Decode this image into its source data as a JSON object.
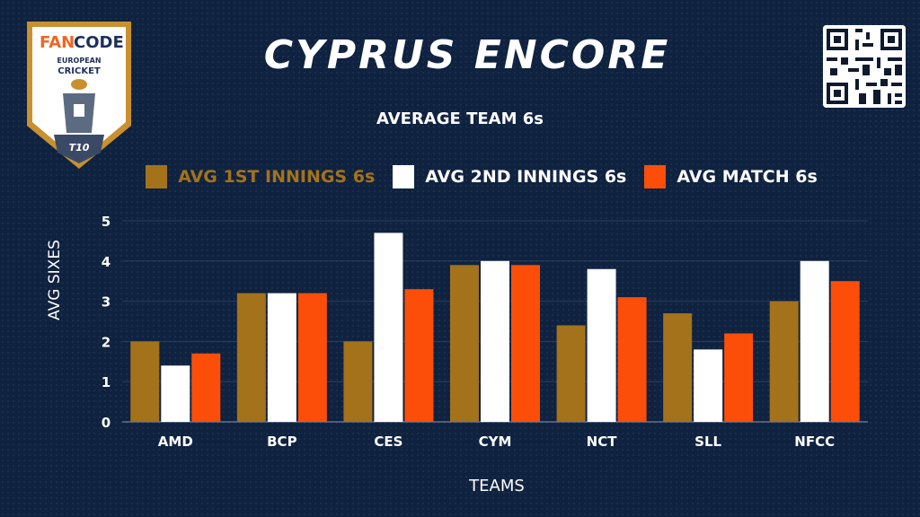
{
  "logo": {
    "brand_left": "FAN",
    "brand_right": "CODE",
    "line1": "EUROPEAN",
    "line2": "CRICKET",
    "badge": "T10"
  },
  "qr": {
    "icon": "qr-code-icon"
  },
  "colors": {
    "background": "#0f2240",
    "gold": "#a4721a",
    "white": "#ffffff",
    "orange": "#fc4e08",
    "grid": "#2c3f5e"
  },
  "chart_data": {
    "type": "bar",
    "title": "CYPRUS ENCORE",
    "subtitle": "AVERAGE TEAM 6s",
    "xlabel": "TEAMS",
    "ylabel": "AVG SIXES",
    "categories": [
      "AMD",
      "BCP",
      "CES",
      "CYM",
      "NCT",
      "SLL",
      "NFCC"
    ],
    "ylim": [
      0,
      5
    ],
    "yticks": [
      "0",
      "1",
      "2",
      "3",
      "4",
      "5"
    ],
    "grid": true,
    "legend_position": "top",
    "series": [
      {
        "name": "AVG 1ST INNINGS 6s",
        "color": "#a4721a",
        "values": [
          2.0,
          3.2,
          2.0,
          3.9,
          2.4,
          2.7,
          3.0
        ]
      },
      {
        "name": "AVG 2ND INNINGS 6s",
        "color": "#ffffff",
        "values": [
          1.4,
          3.2,
          4.7,
          4.0,
          3.8,
          1.8,
          4.0
        ]
      },
      {
        "name": "AVG MATCH 6s",
        "color": "#fc4e08",
        "values": [
          1.7,
          3.2,
          3.3,
          3.9,
          3.1,
          2.2,
          3.5
        ]
      }
    ]
  }
}
